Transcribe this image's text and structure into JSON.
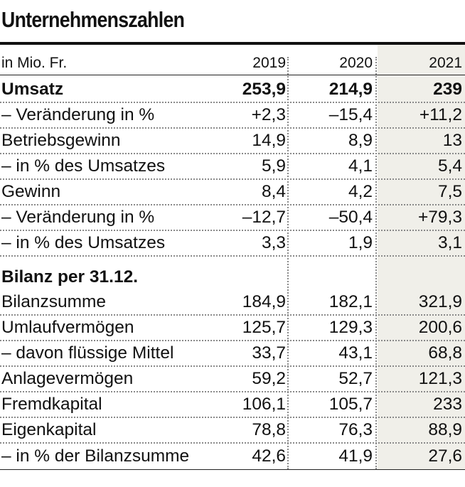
{
  "title": "Unternehmenszahlen",
  "header": {
    "unit": "in Mio. Fr.",
    "years": [
      "2019",
      "2020",
      "2021"
    ]
  },
  "rows": [
    {
      "label": "Umsatz",
      "values": [
        "253,9",
        "214,9",
        "239"
      ]
    },
    {
      "label": "– Veränderung in %",
      "values": [
        "+2,3",
        "–15,4",
        "+11,2"
      ]
    },
    {
      "label": "Betriebsgewinn",
      "values": [
        "14,9",
        "8,9",
        "13"
      ]
    },
    {
      "label": "– in % des Umsatzes",
      "values": [
        "5,9",
        "4,1",
        "5,4"
      ]
    },
    {
      "label": "Gewinn",
      "values": [
        "8,4",
        "4,2",
        "7,5"
      ]
    },
    {
      "label": "– Veränderung in %",
      "values": [
        "–12,7",
        "–50,4",
        "+79,3"
      ]
    },
    {
      "label": "– in % des Umsatzes",
      "values": [
        "3,3",
        "1,9",
        "3,1"
      ]
    },
    {
      "label": "Bilanz per 31.12."
    },
    {
      "label": "Bilanzsumme",
      "values": [
        "184,9",
        "182,1",
        "321,9"
      ]
    },
    {
      "label": "Umlaufvermögen",
      "values": [
        "125,7",
        "129,3",
        "200,6"
      ]
    },
    {
      "label": "– davon flüssige Mittel",
      "values": [
        "33,7",
        "43,1",
        "68,8"
      ]
    },
    {
      "label": "Anlagevermögen",
      "values": [
        "59,2",
        "52,7",
        "121,3"
      ]
    },
    {
      "label": "Fremdkapital",
      "values": [
        "106,1",
        "105,7",
        "233"
      ]
    },
    {
      "label": "Eigenkapital",
      "values": [
        "78,8",
        "76,3",
        "88,9"
      ]
    },
    {
      "label": "– in % der Bilanzsumme",
      "values": [
        "42,6",
        "41,9",
        "27,6"
      ]
    }
  ]
}
